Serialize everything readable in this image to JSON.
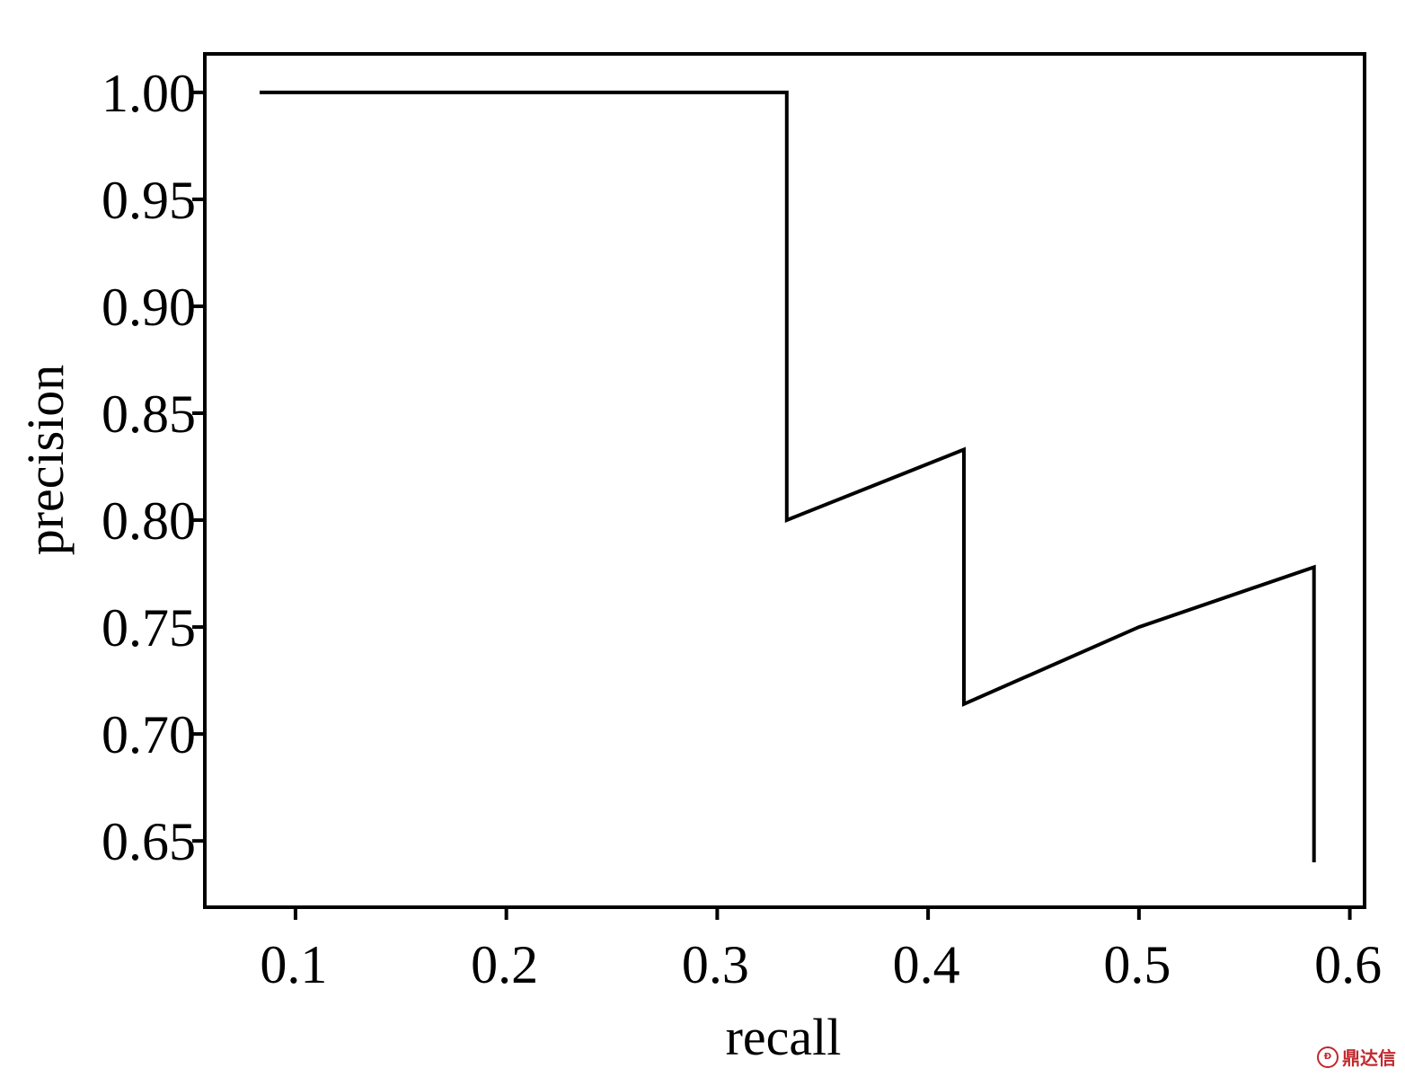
{
  "chart_data": {
    "type": "line",
    "title": "",
    "xlabel": "recall",
    "ylabel": "precision",
    "xlim": [
      0.057,
      0.607
    ],
    "ylim": [
      0.619,
      1.018
    ],
    "xticks": [
      0.1,
      0.2,
      0.3,
      0.4,
      0.5,
      0.6
    ],
    "xtick_labels": [
      "0.1",
      "0.2",
      "0.3",
      "0.4",
      "0.5",
      "0.6"
    ],
    "yticks": [
      0.65,
      0.7,
      0.75,
      0.8,
      0.85,
      0.9,
      0.95,
      1.0
    ],
    "ytick_labels": [
      "0.65",
      "0.70",
      "0.75",
      "0.80",
      "0.85",
      "0.90",
      "0.95",
      "1.00"
    ],
    "grid": false,
    "legend": "none",
    "line_color": "#000000",
    "series": [
      {
        "x": [
          0.083,
          0.333,
          0.333,
          0.417,
          0.417,
          0.5,
          0.583,
          0.583
        ],
        "y": [
          1.0,
          1.0,
          0.8,
          0.833,
          0.714,
          0.75,
          0.778,
          0.64
        ]
      }
    ]
  },
  "watermark": {
    "logo": "dingdaxin-logo-icon",
    "text": "鼎达信",
    "color": "#c0282d"
  }
}
